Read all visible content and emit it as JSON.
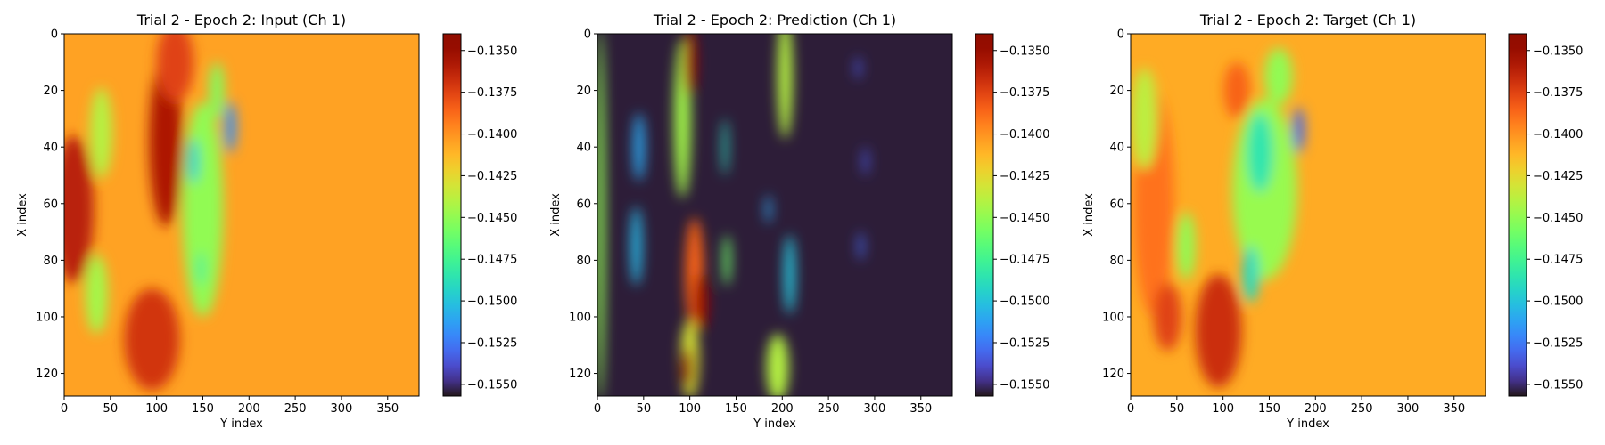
{
  "chart_data": [
    {
      "type": "heatmap",
      "title": "Trial 2 - Epoch 2: Input (Ch 1)",
      "xlabel": "Y index",
      "ylabel": "X index",
      "xlim": [
        0,
        384
      ],
      "ylim": [
        128,
        0
      ],
      "xticks": [
        0,
        50,
        100,
        150,
        200,
        250,
        300,
        350
      ],
      "yticks": [
        0,
        20,
        40,
        60,
        80,
        100,
        120
      ],
      "colormap": "turbo",
      "colorbar": {
        "range": [
          -0.1557,
          -0.134
        ],
        "ticks": [
          "−0.1350",
          "−0.1375",
          "−0.1400",
          "−0.1425",
          "−0.1450",
          "−0.1475",
          "−0.1500",
          "−0.1525",
          "−0.1550"
        ],
        "tick_values": [
          -0.135,
          -0.1375,
          -0.14,
          -0.1425,
          -0.145,
          -0.1475,
          -0.15,
          -0.1525,
          -0.155
        ]
      },
      "background_value": -0.1405,
      "features": [
        {
          "x": 10,
          "y": 62,
          "rx": 22,
          "ry": 26,
          "value": -0.1362
        },
        {
          "x": 110,
          "y": 38,
          "rx": 18,
          "ry": 30,
          "value": -0.1358
        },
        {
          "x": 95,
          "y": 108,
          "rx": 30,
          "ry": 18,
          "value": -0.137
        },
        {
          "x": 120,
          "y": 10,
          "rx": 20,
          "ry": 14,
          "value": -0.1375
        },
        {
          "x": 35,
          "y": 92,
          "rx": 12,
          "ry": 14,
          "value": -0.1445
        },
        {
          "x": 40,
          "y": 35,
          "rx": 12,
          "ry": 16,
          "value": -0.144
        },
        {
          "x": 150,
          "y": 62,
          "rx": 22,
          "ry": 38,
          "value": -0.145
        },
        {
          "x": 140,
          "y": 45,
          "rx": 6,
          "ry": 8,
          "value": -0.1495
        },
        {
          "x": 180,
          "y": 33,
          "rx": 6,
          "ry": 9,
          "value": -0.1518
        },
        {
          "x": 165,
          "y": 20,
          "rx": 8,
          "ry": 10,
          "value": -0.1455
        },
        {
          "x": 148,
          "y": 83,
          "rx": 4,
          "ry": 6,
          "value": -0.148
        }
      ]
    },
    {
      "type": "heatmap",
      "title": "Trial 2 - Epoch 2: Prediction (Ch 1)",
      "xlabel": "Y index",
      "ylabel": "X index",
      "xlim": [
        0,
        384
      ],
      "ylim": [
        128,
        0
      ],
      "xticks": [
        0,
        50,
        100,
        150,
        200,
        250,
        300,
        350
      ],
      "yticks": [
        0,
        20,
        40,
        60,
        80,
        100,
        120
      ],
      "colormap": "turbo",
      "colorbar": {
        "range": [
          -0.1557,
          -0.134
        ],
        "ticks": [
          "−0.1350",
          "−0.1375",
          "−0.1400",
          "−0.1425",
          "−0.1450",
          "−0.1475",
          "−0.1500",
          "−0.1525",
          "−0.1550"
        ],
        "tick_values": [
          -0.135,
          -0.1375,
          -0.14,
          -0.1425,
          -0.145,
          -0.1475,
          -0.15,
          -0.1525,
          -0.155
        ]
      },
      "background_value": -0.1555,
      "features": [
        {
          "x": 3,
          "y": 64,
          "rx": 5,
          "ry": 66,
          "value": -0.145
        },
        {
          "x": 45,
          "y": 40,
          "rx": 6,
          "ry": 12,
          "value": -0.151
        },
        {
          "x": 42,
          "y": 75,
          "rx": 6,
          "ry": 14,
          "value": -0.1505
        },
        {
          "x": 92,
          "y": 30,
          "rx": 9,
          "ry": 28,
          "value": -0.1445
        },
        {
          "x": 100,
          "y": 10,
          "rx": 7,
          "ry": 12,
          "value": -0.1355
        },
        {
          "x": 105,
          "y": 85,
          "rx": 10,
          "ry": 20,
          "value": -0.1385
        },
        {
          "x": 112,
          "y": 95,
          "rx": 8,
          "ry": 10,
          "value": -0.1352
        },
        {
          "x": 100,
          "y": 115,
          "rx": 10,
          "ry": 14,
          "value": -0.143
        },
        {
          "x": 97,
          "y": 118,
          "rx": 6,
          "ry": 7,
          "value": -0.1352
        },
        {
          "x": 138,
          "y": 40,
          "rx": 3,
          "ry": 10,
          "value": -0.149
        },
        {
          "x": 140,
          "y": 80,
          "rx": 4,
          "ry": 9,
          "value": -0.146
        },
        {
          "x": 203,
          "y": 15,
          "rx": 8,
          "ry": 22,
          "value": -0.144
        },
        {
          "x": 208,
          "y": 85,
          "rx": 6,
          "ry": 14,
          "value": -0.15
        },
        {
          "x": 195,
          "y": 118,
          "rx": 12,
          "ry": 12,
          "value": -0.144
        },
        {
          "x": 185,
          "y": 62,
          "rx": 3,
          "ry": 5,
          "value": -0.151
        },
        {
          "x": 282,
          "y": 12,
          "rx": 3,
          "ry": 4,
          "value": -0.1535
        },
        {
          "x": 290,
          "y": 45,
          "rx": 3,
          "ry": 5,
          "value": -0.1535
        },
        {
          "x": 285,
          "y": 75,
          "rx": 3,
          "ry": 5,
          "value": -0.153
        }
      ]
    },
    {
      "type": "heatmap",
      "title": "Trial 2 - Epoch 2: Target (Ch 1)",
      "xlabel": "Y index",
      "ylabel": "X index",
      "xlim": [
        0,
        384
      ],
      "ylim": [
        128,
        0
      ],
      "xticks": [
        0,
        50,
        100,
        150,
        200,
        250,
        300,
        350
      ],
      "yticks": [
        0,
        20,
        40,
        60,
        80,
        100,
        120
      ],
      "colormap": "turbo",
      "colorbar": {
        "range": [
          -0.1557,
          -0.134
        ],
        "ticks": [
          "−0.1350",
          "−0.1375",
          "−0.1400",
          "−0.1425",
          "−0.1450",
          "−0.1475",
          "−0.1500",
          "−0.1525",
          "−0.1550"
        ],
        "tick_values": [
          -0.135,
          -0.1375,
          -0.14,
          -0.1425,
          -0.145,
          -0.1475,
          -0.15,
          -0.1525,
          -0.155
        ]
      },
      "background_value": -0.1408,
      "features": [
        {
          "x": 25,
          "y": 60,
          "rx": 22,
          "ry": 40,
          "value": -0.139
        },
        {
          "x": 95,
          "y": 105,
          "rx": 25,
          "ry": 20,
          "value": -0.1368
        },
        {
          "x": 40,
          "y": 100,
          "rx": 15,
          "ry": 12,
          "value": -0.1375
        },
        {
          "x": 15,
          "y": 30,
          "rx": 14,
          "ry": 18,
          "value": -0.1438
        },
        {
          "x": 145,
          "y": 55,
          "rx": 35,
          "ry": 32,
          "value": -0.1448
        },
        {
          "x": 140,
          "y": 42,
          "rx": 14,
          "ry": 14,
          "value": -0.1485
        },
        {
          "x": 130,
          "y": 85,
          "rx": 9,
          "ry": 10,
          "value": -0.149
        },
        {
          "x": 182,
          "y": 34,
          "rx": 6,
          "ry": 8,
          "value": -0.153
        },
        {
          "x": 160,
          "y": 15,
          "rx": 15,
          "ry": 10,
          "value": -0.145
        },
        {
          "x": 115,
          "y": 20,
          "rx": 14,
          "ry": 10,
          "value": -0.1385
        },
        {
          "x": 60,
          "y": 75,
          "rx": 10,
          "ry": 12,
          "value": -0.145
        }
      ]
    }
  ]
}
